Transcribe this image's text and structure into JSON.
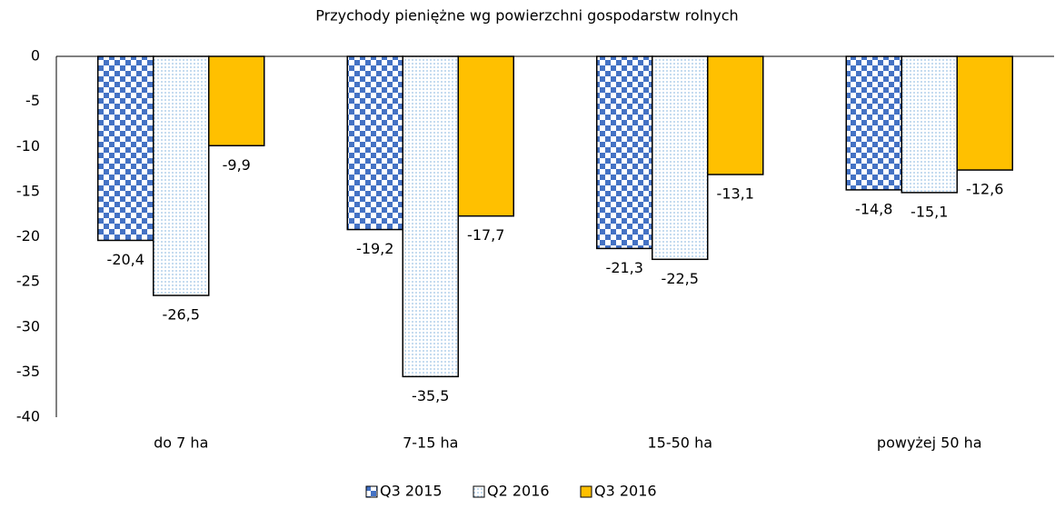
{
  "chart_data": {
    "type": "bar",
    "title": "Przychody pieniężne wg powierzchni gospodarstw rolnych",
    "categories": [
      "do 7 ha",
      "7-15 ha",
      "15-50 ha",
      "powyżej 50 ha"
    ],
    "series": [
      {
        "name": "Q3 2015",
        "color": "#4472c4",
        "pattern": "checker",
        "values": [
          -20.4,
          -19.2,
          -21.3,
          -14.8
        ],
        "value_labels": [
          "-20,4",
          "-19,2",
          "-21,3",
          "-14,8"
        ]
      },
      {
        "name": "Q2 2016",
        "color": "#9dc3e6",
        "pattern": "dots",
        "values": [
          -26.5,
          -35.5,
          -22.5,
          -15.1
        ],
        "value_labels": [
          "-26,5",
          "-35,5",
          "-22,5",
          "-15,1"
        ]
      },
      {
        "name": "Q3 2016",
        "color": "#ffc000",
        "pattern": "solid",
        "values": [
          -9.9,
          -17.7,
          -13.1,
          -12.6
        ],
        "value_labels": [
          "-9,9",
          "-17,7",
          "-13,1",
          "-12,6"
        ]
      }
    ],
    "ylim": [
      -40,
      0
    ],
    "yticks": [
      0,
      -5,
      -10,
      -15,
      -20,
      -25,
      -30,
      -35,
      -40
    ],
    "grid": false,
    "legend": "bottom"
  }
}
